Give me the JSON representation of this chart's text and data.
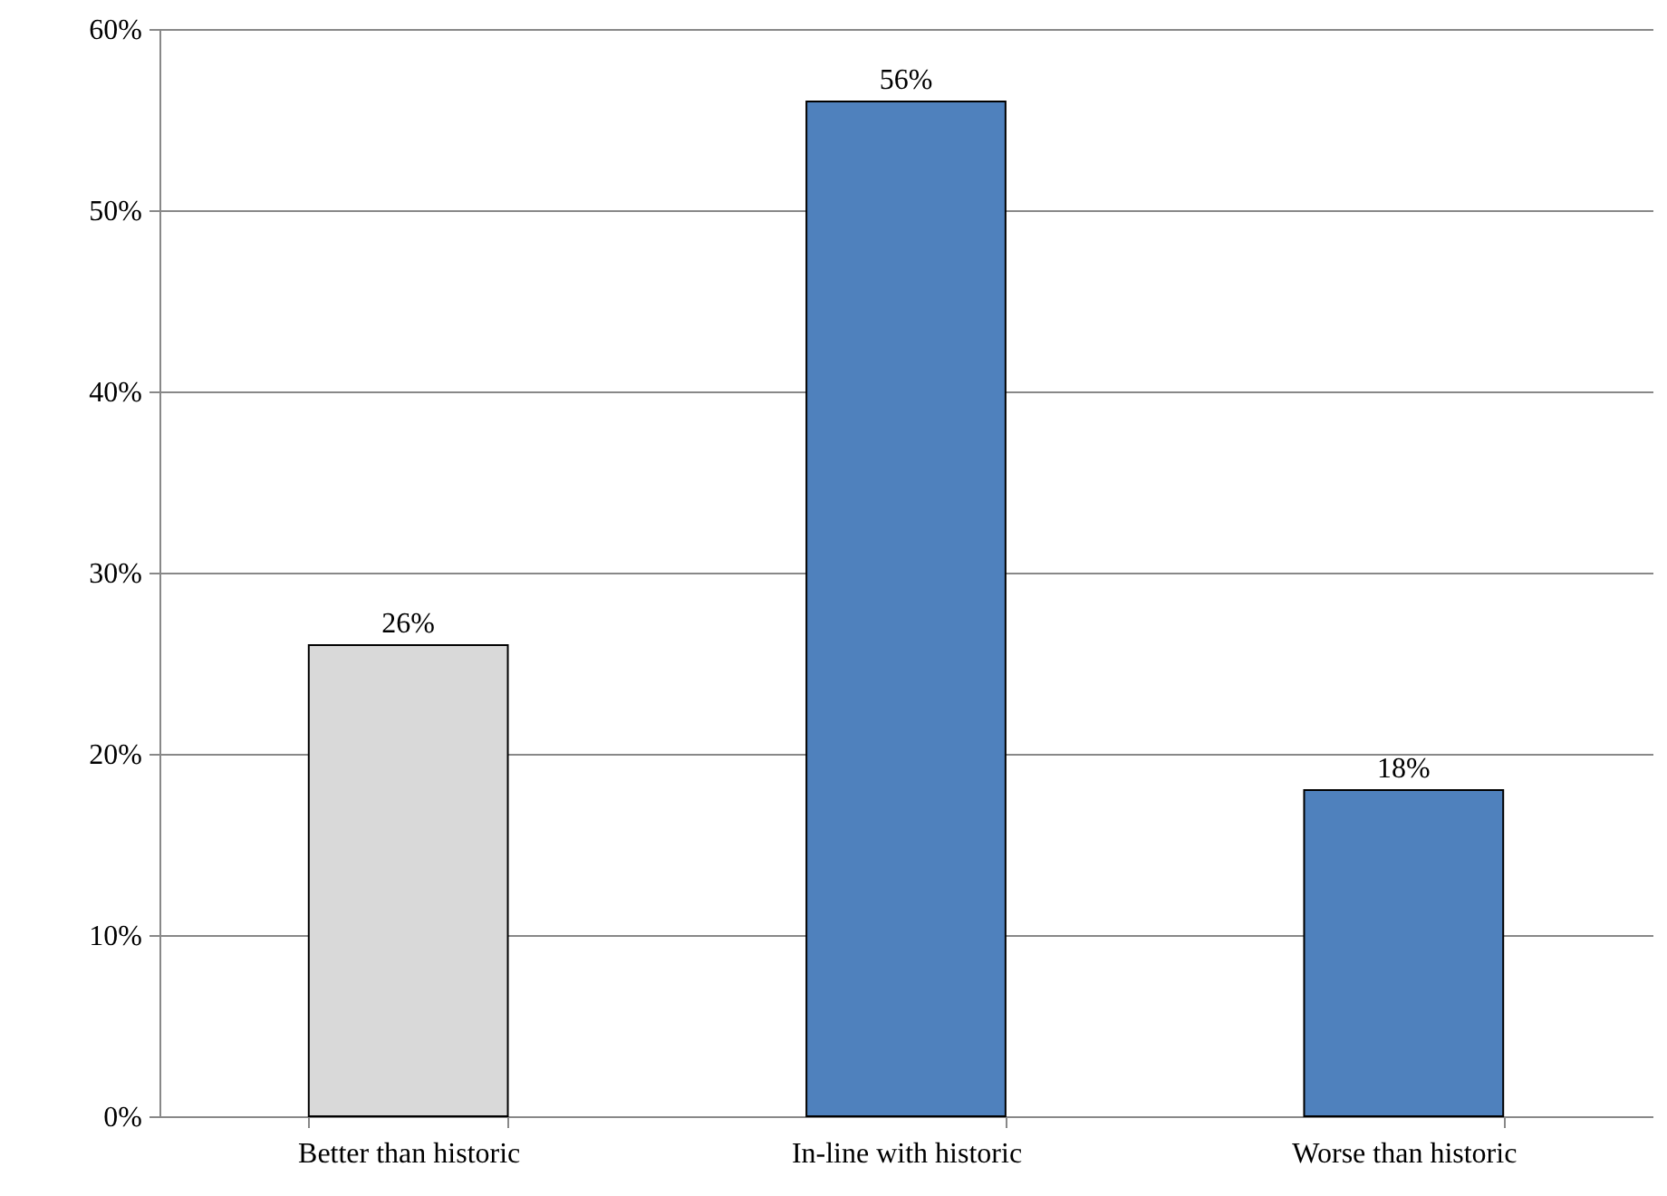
{
  "chart_data": {
    "type": "bar",
    "categories": [
      "Better than historic",
      "In-line with historic",
      "Worse than historic"
    ],
    "values": [
      26,
      56,
      18
    ],
    "colors": [
      "#d9d9d9",
      "#4f81bd",
      "#4f81bd"
    ],
    "value_labels": [
      "26%",
      "56%",
      "18%"
    ],
    "ylim": [
      0,
      60
    ],
    "yticks": [
      {
        "value": 0,
        "label": "0%"
      },
      {
        "value": 10,
        "label": "10%"
      },
      {
        "value": 20,
        "label": "20%"
      },
      {
        "value": 30,
        "label": "30%"
      },
      {
        "value": 40,
        "label": "40%"
      },
      {
        "value": 50,
        "label": "50%"
      },
      {
        "value": 60,
        "label": "60%"
      }
    ],
    "grid": "y"
  }
}
